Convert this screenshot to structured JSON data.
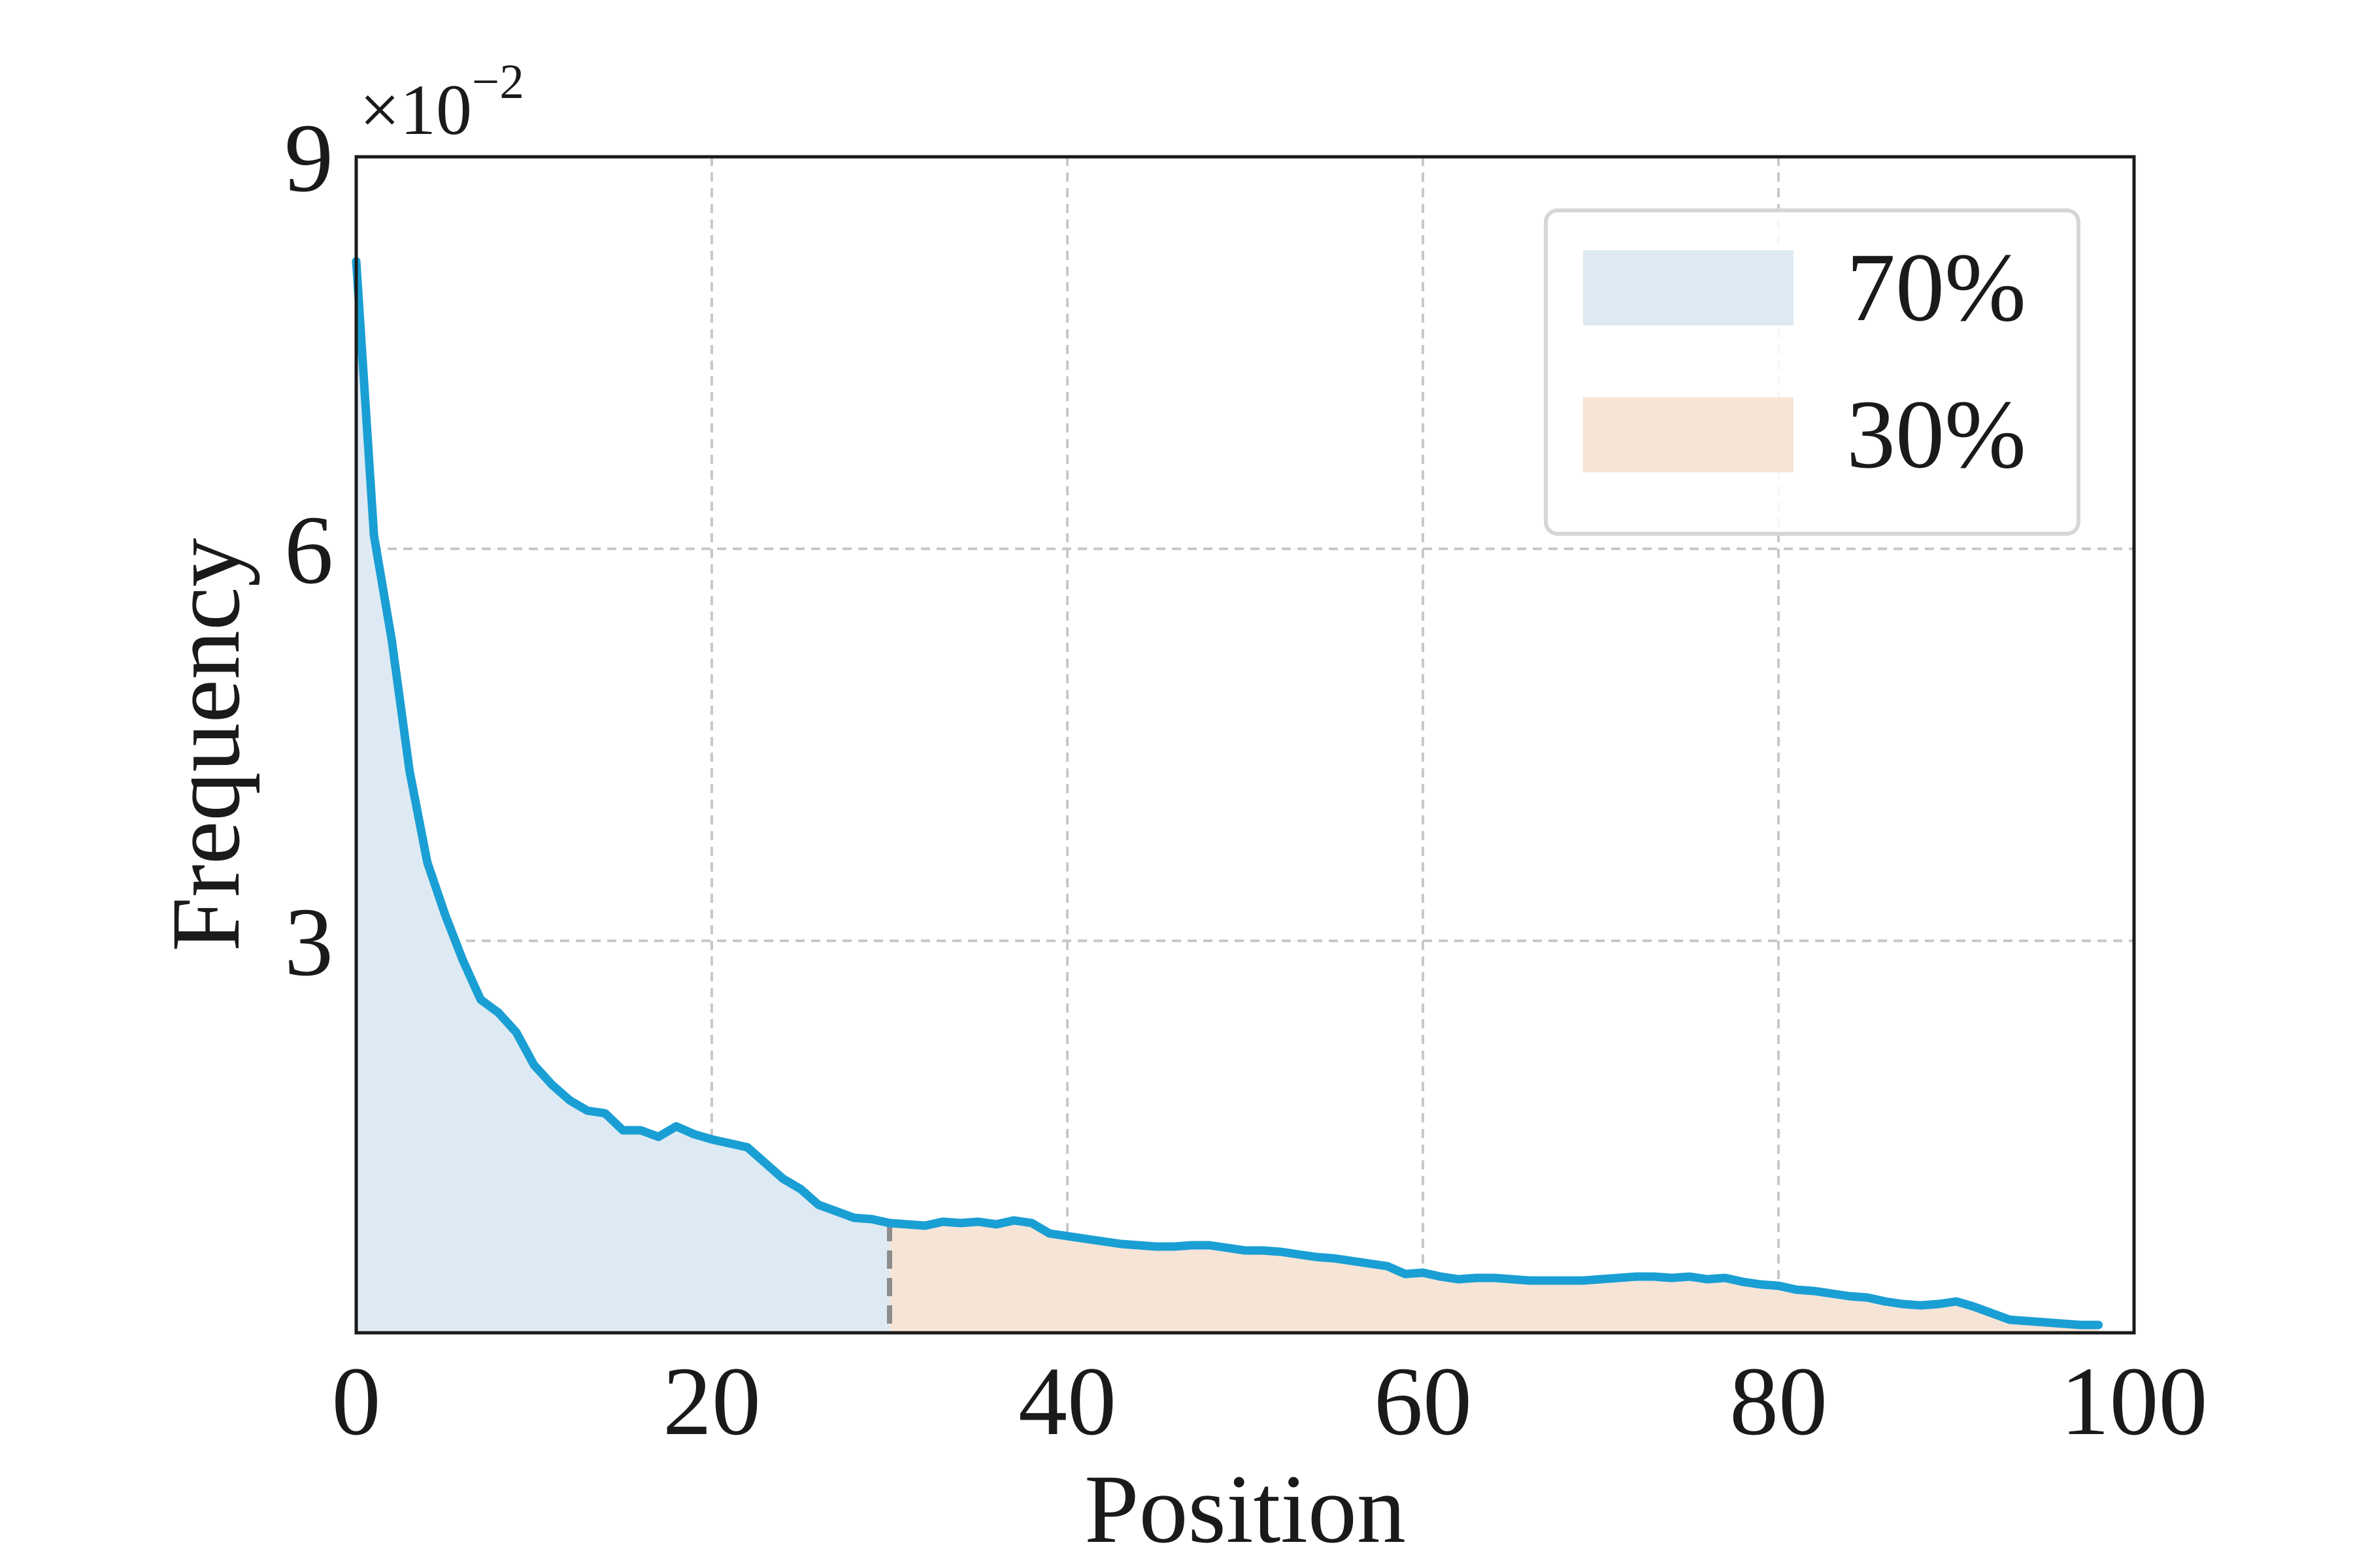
{
  "chart_data": {
    "type": "area",
    "xlabel": "Position",
    "ylabel": "Frequency",
    "y_multiplier_label": "×10",
    "y_multiplier_exponent": "−2",
    "xlim": [
      0,
      100
    ],
    "ylim": [
      0,
      9
    ],
    "x_ticks": [
      "0",
      "20",
      "40",
      "60",
      "80",
      "100"
    ],
    "y_ticks": [
      "3",
      "6",
      "9"
    ],
    "grid": true,
    "legend_position": "top-right",
    "split_x": 30,
    "series": [
      {
        "name": "",
        "x": [
          0,
          1,
          2,
          3,
          4,
          5,
          6,
          7,
          8,
          9,
          10,
          11,
          12,
          13,
          14,
          15,
          16,
          17,
          18,
          19,
          20,
          21,
          22,
          23,
          24,
          25,
          26,
          27,
          28,
          29,
          30,
          31,
          32,
          33,
          34,
          35,
          36,
          37,
          38,
          39,
          40,
          41,
          42,
          43,
          44,
          45,
          46,
          47,
          48,
          49,
          50,
          51,
          52,
          53,
          54,
          55,
          56,
          57,
          58,
          59,
          60,
          61,
          62,
          63,
          64,
          65,
          66,
          67,
          68,
          69,
          70,
          71,
          72,
          73,
          74,
          75,
          76,
          77,
          78,
          79,
          80,
          81,
          82,
          83,
          84,
          85,
          86,
          87,
          88,
          89,
          90,
          91,
          92,
          93,
          94,
          95,
          96,
          97,
          98
        ],
        "y": [
          8.2,
          6.1,
          5.3,
          4.3,
          3.6,
          3.2,
          2.85,
          2.55,
          2.45,
          2.3,
          2.05,
          1.9,
          1.78,
          1.7,
          1.68,
          1.55,
          1.55,
          1.5,
          1.58,
          1.52,
          1.48,
          1.45,
          1.42,
          1.3,
          1.18,
          1.1,
          0.98,
          0.93,
          0.88,
          0.87,
          0.84,
          0.83,
          0.82,
          0.85,
          0.84,
          0.85,
          0.83,
          0.86,
          0.84,
          0.76,
          0.74,
          0.72,
          0.7,
          0.68,
          0.67,
          0.66,
          0.66,
          0.67,
          0.67,
          0.65,
          0.63,
          0.63,
          0.62,
          0.6,
          0.58,
          0.57,
          0.55,
          0.53,
          0.51,
          0.45,
          0.46,
          0.43,
          0.41,
          0.42,
          0.42,
          0.41,
          0.4,
          0.4,
          0.4,
          0.4,
          0.41,
          0.42,
          0.43,
          0.43,
          0.42,
          0.43,
          0.41,
          0.42,
          0.39,
          0.37,
          0.36,
          0.33,
          0.32,
          0.3,
          0.28,
          0.27,
          0.24,
          0.22,
          0.21,
          0.22,
          0.24,
          0.2,
          0.15,
          0.1,
          0.09,
          0.08,
          0.07,
          0.06,
          0.06
        ],
        "color": "#1a9fd4"
      }
    ],
    "regions": [
      {
        "label": "70%",
        "from": 0,
        "to": 30,
        "color": "#deeaf3"
      },
      {
        "label": "30%",
        "from": 30,
        "to": 98,
        "color": "#f6e5d7"
      }
    ]
  }
}
